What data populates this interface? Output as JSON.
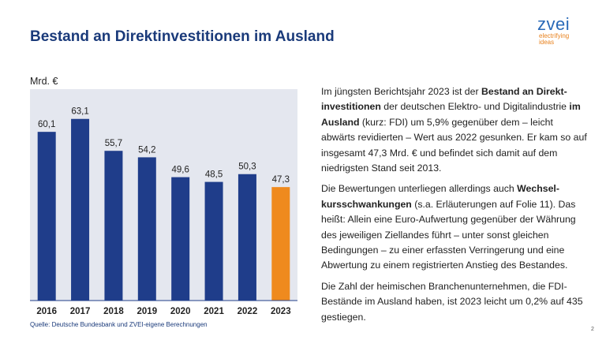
{
  "title": "Bestand an Direktinvestitionen im Ausland",
  "logo": {
    "word": "zvei",
    "tagline_1": "electrifying",
    "tagline_2": "ideas"
  },
  "unit_label": "Mrd. €",
  "source": "Quelle: Deutsche Bundesbank und ZVEI-eigene Berechnungen",
  "page_number": "2",
  "colors": {
    "bar": "#1f3d8a",
    "highlight": "#ef8a1e",
    "plot_bg": "#e4e7ef",
    "title": "#1a3a7a"
  },
  "paragraphs": {
    "p1": [
      {
        "t": "Im jüngsten Berichtsjahr 2023 ist der ",
        "b": false
      },
      {
        "t": "Bestand an Direkt-investitionen",
        "b": true
      },
      {
        "t": " der deutschen Elektro- und Digitalindustrie ",
        "b": false
      },
      {
        "t": "im Ausland",
        "b": true
      },
      {
        "t": " (kurz: FDI) um 5,9% gegenüber dem – leicht abwärts revidierten – Wert aus 2022 gesunken. Er kam so auf insgesamt 47,3 Mrd. € und befindet sich damit auf dem niedrigsten Stand seit 2013.",
        "b": false
      }
    ],
    "p2": [
      {
        "t": "Die Bewertungen unterliegen allerdings auch ",
        "b": false
      },
      {
        "t": "Wechsel-kursschwankungen",
        "b": true
      },
      {
        "t": " (s.a. Erläuterungen auf Folie 11). Das heißt: Allein eine Euro-Aufwertung gegenüber der Währung des jeweiligen Ziellandes führt – unter sonst gleichen Bedingungen – zu einer erfassten Verringerung und eine Abwertung zu einem registrierten Anstieg des Bestandes.",
        "b": false
      }
    ],
    "p3": [
      {
        "t": "Die Zahl der heimischen Branchenunternehmen, die FDI-Bestände im Ausland haben, ist 2023 leicht um 0,2% auf 435 gestiegen.",
        "b": false
      }
    ]
  },
  "chart_data": {
    "type": "bar",
    "categories": [
      "2016",
      "2017",
      "2018",
      "2019",
      "2020",
      "2021",
      "2022",
      "2023"
    ],
    "values": [
      60.1,
      63.1,
      55.7,
      54.2,
      49.6,
      48.5,
      50.3,
      47.3
    ],
    "value_labels": [
      "60,1",
      "63,1",
      "55,7",
      "54,2",
      "49,6",
      "48,5",
      "50,3",
      "47,3"
    ],
    "highlight_index": 7,
    "ylabel": "Mrd. €",
    "ylim": [
      21,
      70
    ],
    "grid": false,
    "legend": "none"
  }
}
